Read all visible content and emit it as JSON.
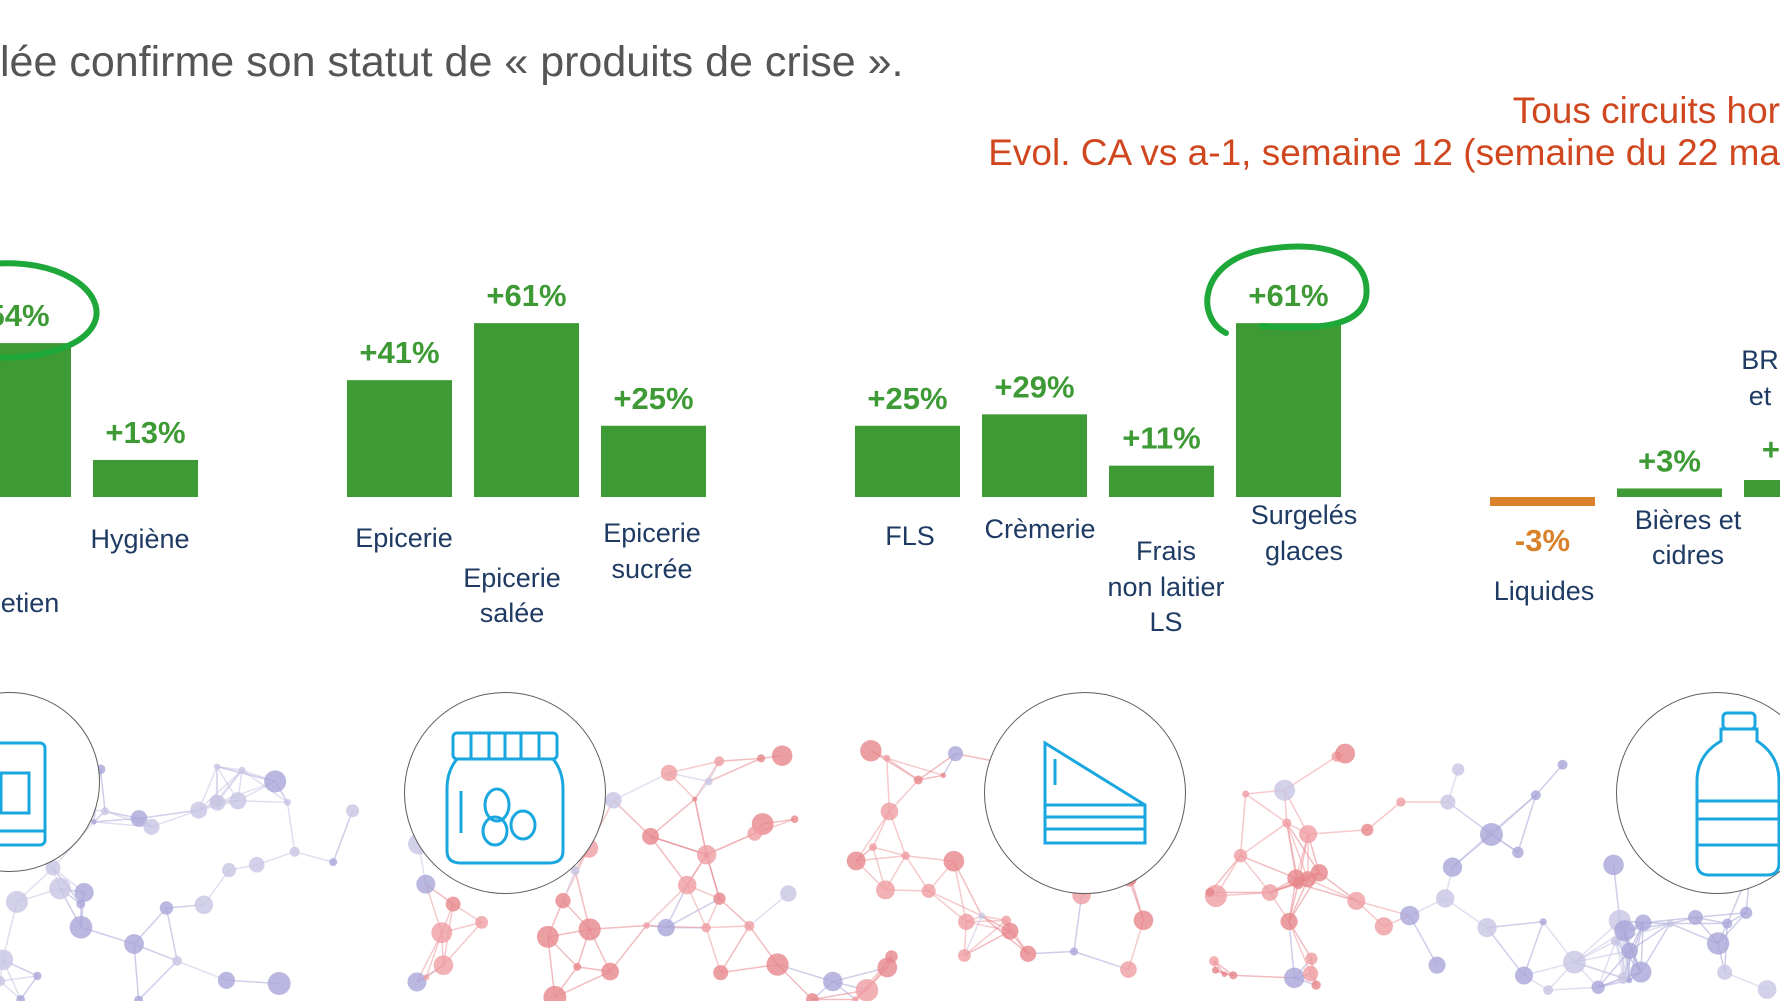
{
  "header": {
    "headline": "lée confirme son statut de « produits de crise ».",
    "subtitle_line1": "Tous circuits hor",
    "subtitle_line2": "Evol. CA vs a-1, semaine 12 (semaine du 22 ma"
  },
  "colors": {
    "positive": "#3d9a35",
    "negative": "#d9822b",
    "annotation": "#1fa83a",
    "icon": "#1aa7e0",
    "subtitle": "#d0471f"
  },
  "chart_data": {
    "type": "bar",
    "title": "Tous circuits hor",
    "subtitle": "Evol. CA vs a-1, semaine 12 (semaine du 22 ma",
    "unit": "%",
    "categories": [
      "",
      "Hygiène",
      "Epicerie",
      "Epicerie salée",
      "Epicerie sucrée",
      "FLS",
      "Crèmerie",
      "Frais non laitier LS",
      "Surgelés glaces",
      "Liquides",
      "Bières et cidres",
      "BR et"
    ],
    "category_lines": [
      [
        "etien"
      ],
      [
        "Hygiène"
      ],
      [
        "Epicerie"
      ],
      [
        "Epicerie",
        "salée"
      ],
      [
        "Epicerie",
        "sucrée"
      ],
      [
        "FLS"
      ],
      [
        "Crèmerie"
      ],
      [
        "Frais",
        "non laitier",
        "LS"
      ],
      [
        "Surgelés",
        "glaces"
      ],
      [
        "Liquides"
      ],
      [
        "Bières et",
        "cidres"
      ],
      [
        "BR",
        "et"
      ]
    ],
    "values": [
      54,
      13,
      41,
      61,
      25,
      25,
      29,
      11,
      61,
      -3,
      3,
      null
    ],
    "value_labels": [
      "54%",
      "+13%",
      "+41%",
      "+61%",
      "+25%",
      "+25%",
      "+29%",
      "+11%",
      "+61%",
      "-3%",
      "+3%",
      "+"
    ],
    "groups": [
      {
        "icon": "cleaning-product-icon",
        "members": [
          "",
          "Hygiène"
        ]
      },
      {
        "icon": "jar-icon",
        "members": [
          "Epicerie",
          "Epicerie salée",
          "Epicerie sucrée"
        ]
      },
      {
        "icon": "cake-slice-icon",
        "members": [
          "FLS",
          "Crèmerie",
          "Frais non laitier LS",
          "Surgelés glaces"
        ]
      },
      {
        "icon": "bottle-icon",
        "members": [
          "Liquides",
          "Bières et cidres",
          "BR et"
        ]
      }
    ],
    "highlighted": [
      "",
      "Surgelés glaces"
    ],
    "ylim": [
      -3,
      61
    ],
    "grid": false,
    "legend": "none"
  }
}
